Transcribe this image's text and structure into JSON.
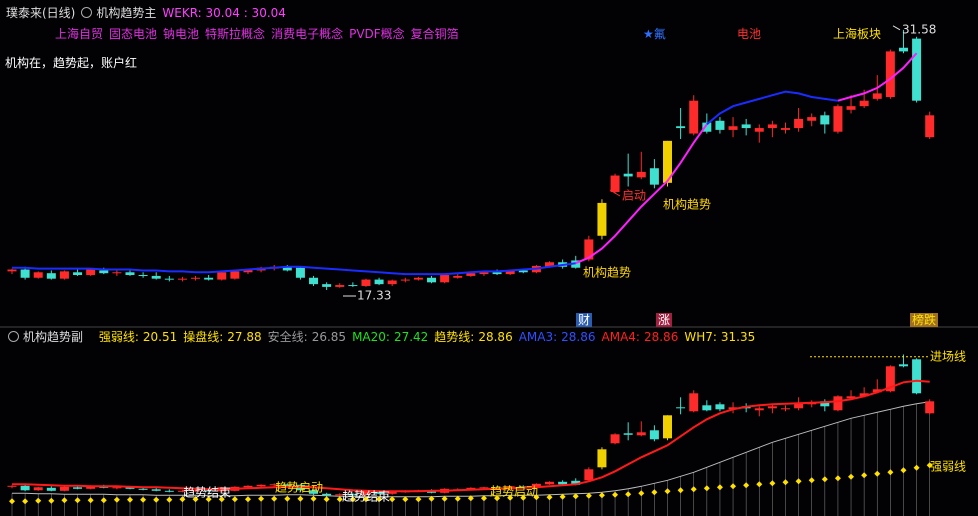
{
  "chart_data": [
    {
      "type": "candlestick",
      "stock": "璞泰来(日线)",
      "title": "机构趋势主",
      "indicator": "WEKR: 30.04 : 30.04",
      "tags": [
        "上海自贸",
        "固态电池",
        "钠电池",
        "特斯拉概念",
        "消费电子概念",
        "PVDF概念",
        "复合铜箔"
      ],
      "sectors": [
        {
          "text": "★氟",
          "color": "#3070ff"
        },
        {
          "text": "电池",
          "color": "#ff3030"
        },
        {
          "text": "上海板块",
          "color": "#ffe000"
        }
      ],
      "note": "机构在，趋势起，账户红",
      "annotations": [
        {
          "text": "机构趋势",
          "color": "#ffd700"
        },
        {
          "text": "启动",
          "color": "#ff3030"
        },
        {
          "text": "机构趋势",
          "color": "#ffd700"
        }
      ],
      "low_label": 17.33,
      "high_label": 31.58,
      "markers": [
        {
          "text": "财",
          "color": "#2a5cb0"
        },
        {
          "text": "涨",
          "color": "#a02040"
        },
        {
          "text": "榜跌",
          "color": "#a07020"
        }
      ],
      "ylim": [
        15.96,
        32.12
      ],
      "colors": {
        "up": "#ff2a2a",
        "down": "#40e0d0",
        "highlight": "#f0d000"
      },
      "highlight": [
        45,
        50
      ],
      "open": [
        18.35,
        18.45,
        18.0,
        18.25,
        17.95,
        18.3,
        18.15,
        18.4,
        18.25,
        18.3,
        18.15,
        18.1,
        17.95,
        17.9,
        17.95,
        18.0,
        17.9,
        17.95,
        18.3,
        18.4,
        18.5,
        18.6,
        18.55,
        18.0,
        17.65,
        17.5,
        17.6,
        17.55,
        17.9,
        17.65,
        17.85,
        17.9,
        18.0,
        17.75,
        18.0,
        18.1,
        18.2,
        18.3,
        18.2,
        18.4,
        18.3,
        18.6,
        18.85,
        18.95,
        19.0,
        20.3,
        22.7,
        23.7,
        23.5,
        24.0,
        23.2,
        26.3,
        25.9,
        26.5,
        26.6,
        26.1,
        26.4,
        26.0,
        26.2,
        26.1,
        26.2,
        26.6,
        26.9,
        26.0,
        27.2,
        27.4,
        27.8,
        27.9,
        30.6,
        31.1,
        25.7
      ],
      "high": [
        18.5,
        18.6,
        18.35,
        18.4,
        18.4,
        18.45,
        18.5,
        18.55,
        18.4,
        18.4,
        18.3,
        18.3,
        18.1,
        18.05,
        18.1,
        18.15,
        18.35,
        18.4,
        18.5,
        18.6,
        18.7,
        18.7,
        18.6,
        18.1,
        17.75,
        17.7,
        17.75,
        17.95,
        18.0,
        17.9,
        18.0,
        18.05,
        18.1,
        18.2,
        18.2,
        18.3,
        18.35,
        18.45,
        18.45,
        18.5,
        18.7,
        18.9,
        19.0,
        19.2,
        20.3,
        22.3,
        23.7,
        24.8,
        24.9,
        24.5,
        25.5,
        27.3,
        28.0,
        27.0,
        26.8,
        26.8,
        26.7,
        26.4,
        26.6,
        26.5,
        27.3,
        27.0,
        27.1,
        27.5,
        28.0,
        28.3,
        29.1,
        30.5,
        31.58,
        31.2,
        27.1
      ],
      "low": [
        18.2,
        17.9,
        17.95,
        17.9,
        17.9,
        18.1,
        18.1,
        18.2,
        18.1,
        18.1,
        18.0,
        17.9,
        17.8,
        17.8,
        17.85,
        17.85,
        17.85,
        17.9,
        18.2,
        18.3,
        18.4,
        18.35,
        17.9,
        17.55,
        17.33,
        17.45,
        17.5,
        17.5,
        17.6,
        17.55,
        17.75,
        17.85,
        17.7,
        17.7,
        17.95,
        18.05,
        18.1,
        18.15,
        18.15,
        18.25,
        18.25,
        18.55,
        18.5,
        18.5,
        18.9,
        20.1,
        22.6,
        23.0,
        23.4,
        22.9,
        23.0,
        25.6,
        25.8,
        25.9,
        25.9,
        25.7,
        25.8,
        25.4,
        25.7,
        25.9,
        26.0,
        26.3,
        25.9,
        25.9,
        27.0,
        27.3,
        27.7,
        27.8,
        30.3,
        27.6,
        25.6
      ],
      "close": [
        18.45,
        18.0,
        18.3,
        17.95,
        18.35,
        18.15,
        18.45,
        18.25,
        18.3,
        18.15,
        18.1,
        17.95,
        17.9,
        17.95,
        18.0,
        17.9,
        18.3,
        18.35,
        18.45,
        18.55,
        18.6,
        18.4,
        18.0,
        17.65,
        17.5,
        17.6,
        17.55,
        17.9,
        17.65,
        17.85,
        17.9,
        18.0,
        17.75,
        18.15,
        18.1,
        18.25,
        18.3,
        18.2,
        18.4,
        18.3,
        18.65,
        18.85,
        18.6,
        18.55,
        20.1,
        22.1,
        23.6,
        23.55,
        23.8,
        23.1,
        25.5,
        26.2,
        27.7,
        26.0,
        26.1,
        26.3,
        26.2,
        26.2,
        26.4,
        26.2,
        26.7,
        26.8,
        26.4,
        27.4,
        27.4,
        27.7,
        28.1,
        30.4,
        30.4,
        27.7,
        26.9
      ],
      "series": [
        {
          "color": "#1a2cff",
          "values": [
            18.55,
            18.55,
            18.5,
            18.5,
            18.5,
            18.5,
            18.5,
            18.45,
            18.45,
            18.45,
            18.4,
            18.4,
            18.35,
            18.35,
            18.3,
            18.3,
            18.35,
            18.4,
            18.45,
            18.5,
            18.55,
            18.6,
            18.6,
            18.55,
            18.5,
            18.45,
            18.4,
            18.35,
            18.3,
            18.25,
            18.2,
            18.2,
            18.2,
            18.2,
            18.25,
            18.3,
            18.35,
            18.35,
            18.4,
            18.45,
            18.5,
            18.6,
            18.7,
            18.8,
            null,
            null,
            null,
            null,
            null,
            null,
            null,
            null,
            null,
            26.4,
            27.0,
            27.4,
            27.6,
            27.8,
            28.0,
            28.2,
            28.1,
            27.9,
            27.8,
            27.7,
            null,
            null,
            null,
            null,
            null,
            null,
            null
          ]
        },
        {
          "color": "#ff20ff",
          "values": [
            null,
            null,
            null,
            null,
            null,
            null,
            null,
            null,
            null,
            null,
            null,
            null,
            null,
            null,
            null,
            null,
            null,
            null,
            null,
            null,
            null,
            null,
            null,
            null,
            null,
            null,
            null,
            null,
            null,
            null,
            null,
            null,
            null,
            null,
            null,
            null,
            null,
            null,
            null,
            null,
            null,
            null,
            null,
            18.8,
            19.1,
            19.6,
            20.3,
            21.1,
            21.9,
            22.6,
            23.3,
            24.3,
            25.4,
            26.4,
            null,
            null,
            null,
            null,
            null,
            null,
            null,
            null,
            null,
            27.7,
            27.9,
            28.1,
            28.4,
            28.9,
            29.5,
            30.3,
            null
          ]
        }
      ]
    },
    {
      "type": "indicator",
      "title": "机构趋势副",
      "readouts": [
        {
          "label": "强弱线:",
          "value": 20.51,
          "color": "#ffe000"
        },
        {
          "label": "操盘线:",
          "value": 27.88,
          "color": "#ffe000"
        },
        {
          "label": "安全线:",
          "value": 26.85,
          "color": "#999999"
        },
        {
          "label": "MA20:",
          "value": 27.42,
          "color": "#20e020"
        },
        {
          "label": "趋势线:",
          "value": 28.86,
          "color": "#ffe000"
        },
        {
          "label": "AMA3:",
          "value": 28.86,
          "color": "#3050ff"
        },
        {
          "label": "AMA4:",
          "value": 28.86,
          "color": "#ff2020"
        },
        {
          "label": "WH7:",
          "value": 31.35,
          "color": "#ffe000"
        }
      ],
      "right_labels": [
        "进场线",
        "强弱线"
      ],
      "annotations": [
        {
          "text": "趋势结束",
          "color": "#ffffff"
        },
        {
          "text": "趋势启动",
          "color": "#ffe000"
        },
        {
          "text": "趋势结束",
          "color": "#ffffff"
        },
        {
          "text": "趋势启动",
          "color": "#ffe000"
        }
      ],
      "ylim": [
        15.43,
        32.53
      ],
      "series": [
        {
          "color": "#bbbbbb",
          "style": "hair",
          "values": [
            17.7,
            17.7,
            17.65,
            17.65,
            17.6,
            17.6,
            17.6,
            17.6,
            17.55,
            17.55,
            17.55,
            17.5,
            17.5,
            17.5,
            17.5,
            17.45,
            17.45,
            17.45,
            17.5,
            17.5,
            17.5,
            17.55,
            17.55,
            17.5,
            17.45,
            17.4,
            17.4,
            17.35,
            17.35,
            17.35,
            17.35,
            17.35,
            17.35,
            17.4,
            17.4,
            17.4,
            17.45,
            17.45,
            17.5,
            17.5,
            17.5,
            17.55,
            17.6,
            17.65,
            17.7,
            17.8,
            17.95,
            18.15,
            18.4,
            18.7,
            19.0,
            19.4,
            19.8,
            20.3,
            20.8,
            21.3,
            21.8,
            22.3,
            22.8,
            23.2,
            23.6,
            24.0,
            24.4,
            24.8,
            25.2,
            25.5,
            25.8,
            26.1,
            26.4,
            26.65,
            26.85
          ]
        },
        {
          "color": "#ff1a1a",
          "style": "line",
          "values": [
            18.6,
            18.6,
            18.55,
            18.5,
            18.45,
            18.45,
            18.4,
            18.4,
            18.4,
            18.35,
            18.3,
            18.3,
            18.25,
            18.2,
            18.15,
            18.1,
            18.1,
            18.15,
            18.2,
            18.25,
            18.3,
            18.35,
            18.35,
            18.3,
            18.2,
            18.1,
            18.0,
            17.95,
            17.9,
            17.9,
            17.9,
            17.9,
            17.95,
            17.95,
            18.0,
            18.05,
            18.1,
            18.15,
            18.2,
            18.25,
            18.3,
            18.4,
            18.5,
            18.6,
            18.9,
            19.3,
            19.9,
            20.6,
            21.3,
            21.9,
            22.5,
            23.4,
            24.3,
            25.1,
            25.7,
            26.1,
            26.35,
            26.5,
            26.6,
            26.65,
            26.7,
            26.75,
            26.8,
            26.9,
            27.1,
            27.4,
            27.8,
            28.3,
            28.8,
            28.95,
            28.86
          ]
        },
        {
          "color": "#ffe000",
          "style": "diamond",
          "values": [
            16.9,
            16.9,
            16.95,
            16.95,
            17.0,
            17.0,
            17.0,
            17.0,
            17.05,
            17.05,
            17.05,
            17.05,
            17.05,
            17.1,
            17.1,
            17.1,
            17.1,
            17.1,
            17.1,
            17.15,
            17.15,
            17.15,
            17.15,
            17.15,
            17.1,
            17.1,
            17.1,
            17.1,
            17.1,
            17.1,
            17.1,
            17.1,
            17.15,
            17.15,
            17.15,
            17.2,
            17.2,
            17.2,
            17.25,
            17.25,
            17.3,
            17.3,
            17.35,
            17.4,
            17.45,
            17.5,
            17.55,
            17.6,
            17.7,
            17.8,
            17.9,
            18.0,
            18.1,
            18.2,
            18.3,
            18.4,
            18.5,
            18.6,
            18.7,
            18.8,
            18.9,
            19.0,
            19.1,
            19.2,
            19.35,
            19.5,
            19.65,
            19.8,
            20.0,
            20.25,
            20.51
          ]
        }
      ]
    }
  ]
}
